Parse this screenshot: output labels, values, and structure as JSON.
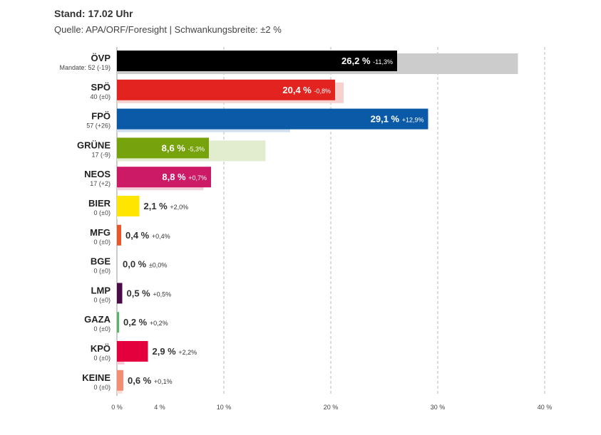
{
  "header": {
    "stand": "Stand: 17.02 Uhr",
    "source": "Quelle: APA/ORF/Foresight | Schwankungsbreite: ±2 %"
  },
  "chart_data": {
    "type": "bar",
    "orientation": "horizontal",
    "title": "",
    "xlabel": "",
    "ylabel": "",
    "xlim": [
      0,
      40
    ],
    "gridlines": [
      10,
      20,
      30,
      40
    ],
    "x_ticks": [
      {
        "value": 0,
        "label": "0 %"
      },
      {
        "value": 4,
        "label": "4 %"
      },
      {
        "value": 10,
        "label": "10 %"
      },
      {
        "value": 20,
        "label": "20 %"
      },
      {
        "value": 30,
        "label": "30 %"
      },
      {
        "value": 40,
        "label": "40 %"
      }
    ],
    "categories": [
      "ÖVP",
      "SPÖ",
      "FPÖ",
      "GRÜNE",
      "NEOS",
      "BIER",
      "MFG",
      "BGE",
      "LMP",
      "GAZA",
      "KPÖ",
      "KEINE"
    ],
    "mandates": [
      "Mandate: 52 (-19)",
      "40 (±0)",
      "57 (+26)",
      "17 (-9)",
      "17 (+2)",
      "0 (±0)",
      "0 (±0)",
      "0 (±0)",
      "0 (±0)",
      "0 (±0)",
      "0 (±0)",
      "0 (±0)"
    ],
    "series": [
      {
        "values": [
          26.2,
          20.4,
          29.1,
          8.6,
          8.8,
          2.1,
          0.4,
          0.0,
          0.5,
          0.2,
          2.9,
          0.6
        ],
        "labels": [
          "26,2 %",
          "20,4 %",
          "29,1 %",
          "8,6 %",
          "8,8 %",
          "2,1 %",
          "0,4 %",
          "0,0 %",
          "0,5 %",
          "0,2 %",
          "2,9 %",
          "0,6 %"
        ]
      },
      {
        "values": [
          37.5,
          21.2,
          16.2,
          13.9,
          8.1,
          0.1,
          0.0,
          0.0,
          0.0,
          0.0,
          0.7,
          0.5
        ]
      }
    ],
    "changes": [
      "-11,3%",
      "-0,8%",
      "+12,9%",
      "-5,3%",
      "+0,7%",
      "+2,0%",
      "+0,4%",
      "±0,0%",
      "+0,5%",
      "+0,2%",
      "+2,2%",
      "+0,1%"
    ],
    "colors": [
      "#000000",
      "#e3231f",
      "#0a5aa8",
      "#76a20c",
      "#cc1a66",
      "#ffe600",
      "#e8562a",
      "#aaaaaa",
      "#4a0b47",
      "#58b56a",
      "#e4003c",
      "#f58d75"
    ],
    "previous_colors": [
      "#cccccc",
      "#f8d0ce",
      "#cfdff0",
      "#e2edcf",
      "#f3cfdd",
      "#fff6b3",
      "#f8d9cd",
      "#eeeeee",
      "#ddd0dc",
      "#d8efdb",
      "#f9cad6",
      "#fcddd3"
    ]
  }
}
